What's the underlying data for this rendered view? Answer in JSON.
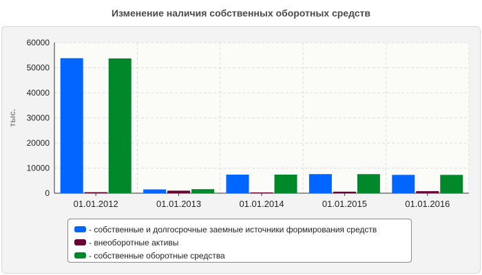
{
  "chart_data": {
    "type": "bar",
    "title": "Изменение наличия собственных оборотных средств",
    "ylabel": "тыс.",
    "xlabel": "",
    "categories": [
      "01.01.2012",
      "01.01.2013",
      "01.01.2014",
      "01.01.2015",
      "01.01.2016"
    ],
    "ylim": [
      0,
      60000
    ],
    "yticks": [
      "0",
      "10000",
      "20000",
      "30000",
      "40000",
      "50000",
      "60000"
    ],
    "grid": true,
    "legend_position": "bottom",
    "series": [
      {
        "name": "собственные и долгосрочные заемные источники формирования средств",
        "color": "#0066ff",
        "values": [
          53800,
          1500,
          7400,
          7600,
          7300
        ]
      },
      {
        "name": "внеоборотные активы",
        "color": "#660033",
        "values": [
          400,
          1000,
          300,
          600,
          800
        ]
      },
      {
        "name": "собственные оборотные средства",
        "color": "#00882b",
        "values": [
          53700,
          1600,
          7400,
          7600,
          7300
        ]
      }
    ]
  }
}
